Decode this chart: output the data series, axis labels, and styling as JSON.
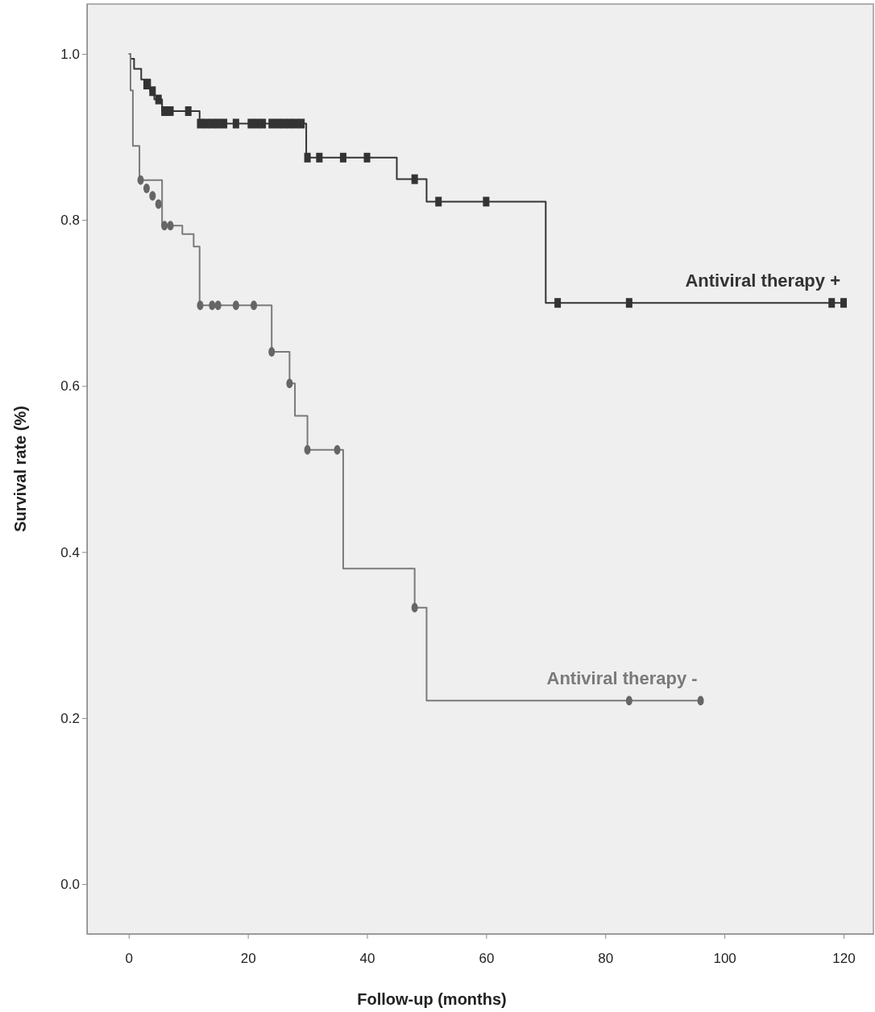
{
  "chart_data": {
    "type": "step",
    "xlabel": "Follow-up (months)",
    "ylabel": "Survival rate (%)",
    "xlim": [
      -7,
      125
    ],
    "ylim": [
      -0.06,
      1.06
    ],
    "xticks": [
      0,
      20,
      40,
      60,
      80,
      100,
      120
    ],
    "yticks": [
      {
        "value": 0,
        "label": "0.0"
      },
      {
        "value": 0.2,
        "label": "0.2"
      },
      {
        "value": 0.4,
        "label": "0.4"
      },
      {
        "value": 0.6,
        "label": "0.6"
      },
      {
        "value": 0.8,
        "label": "0.8"
      },
      {
        "value": 1,
        "label": "1.0"
      }
    ],
    "series": [
      {
        "name": "Antiviral therapy +",
        "color": "#333333",
        "x": [
          0,
          0.3,
          0.9,
          2.1,
          3.6,
          4.3,
          5.6,
          11.9,
          29.8,
          45,
          50,
          70,
          120
        ],
        "values": [
          1,
          0.994,
          0.982,
          0.969,
          0.955,
          0.945,
          0.931,
          0.916,
          0.875,
          0.849,
          0.822,
          0.7,
          0.7
        ]
      },
      {
        "name": "Antiviral therapy -",
        "color": "#7a7a7a",
        "x": [
          0,
          0.3,
          0.7,
          1.8,
          5.6,
          9,
          10.9,
          11.9,
          24,
          27,
          27.9,
          30,
          36,
          48,
          50,
          96
        ],
        "values": [
          1,
          0.956,
          0.889,
          0.848,
          0.793,
          0.783,
          0.768,
          0.697,
          0.641,
          0.603,
          0.564,
          0.523,
          0.38,
          0.333,
          0.221,
          0.221
        ]
      },
      {
        "type": "scatter",
        "marker": "square",
        "color": "#333333",
        "x": [
          3,
          4,
          5,
          6,
          7,
          10,
          12,
          13,
          14,
          15,
          16,
          18,
          20.5,
          21.5,
          22.5,
          24,
          25,
          26,
          27,
          28,
          29,
          30,
          32,
          36,
          40,
          48,
          52,
          60,
          72,
          84,
          118,
          120
        ],
        "values": [
          0.963,
          0.955,
          0.945,
          0.931,
          0.931,
          0.931,
          0.916,
          0.916,
          0.916,
          0.916,
          0.916,
          0.916,
          0.916,
          0.916,
          0.916,
          0.916,
          0.916,
          0.916,
          0.916,
          0.916,
          0.916,
          0.875,
          0.875,
          0.875,
          0.875,
          0.849,
          0.822,
          0.822,
          0.7,
          0.7,
          0.7,
          0.7
        ]
      },
      {
        "type": "scatter",
        "marker": "circle",
        "color": "#666666",
        "x": [
          2,
          3,
          4,
          5,
          6,
          7,
          12,
          14,
          15,
          18,
          21,
          24,
          27,
          30,
          35,
          48,
          84,
          96
        ],
        "values": [
          0.848,
          0.838,
          0.829,
          0.819,
          0.793,
          0.793,
          0.697,
          0.697,
          0.697,
          0.697,
          0.697,
          0.641,
          0.603,
          0.523,
          0.523,
          0.333,
          0.221,
          0.221
        ]
      }
    ]
  }
}
